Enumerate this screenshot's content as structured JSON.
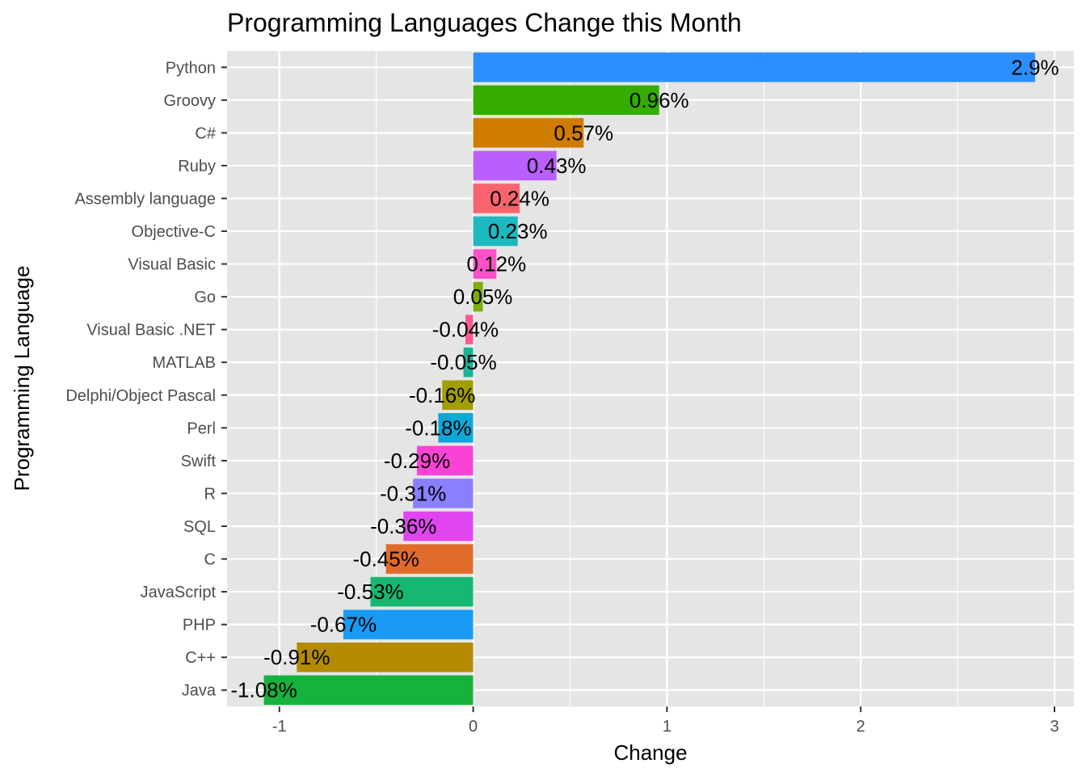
{
  "chart_data": {
    "type": "bar",
    "orientation": "horizontal",
    "title": "Programming Languages Change this Month",
    "xlabel": "Change",
    "ylabel": "Programming Language",
    "xlim": [
      -1.27,
      3.1
    ],
    "x_ticks": [
      "-1",
      "0",
      "1",
      "2",
      "3"
    ],
    "x_tick_values": [
      -1,
      0,
      1,
      2,
      3
    ],
    "grid": true,
    "legend": "none",
    "categories": [
      "Python",
      "Groovy",
      "C#",
      "Ruby",
      "Assembly language",
      "Objective-C",
      "Visual Basic",
      "Go",
      "Visual Basic .NET",
      "MATLAB",
      "Delphi/Object Pascal",
      "Perl",
      "Swift",
      "R",
      "SQL",
      "C",
      "JavaScript",
      "PHP",
      "C++",
      "Java"
    ],
    "values": [
      2.9,
      0.96,
      0.57,
      0.43,
      0.24,
      0.23,
      0.12,
      0.05,
      -0.04,
      -0.05,
      -0.16,
      -0.18,
      -0.29,
      -0.31,
      -0.36,
      -0.45,
      -0.53,
      -0.67,
      -0.91,
      -1.08
    ],
    "labels": [
      "2.9%",
      "0.96%",
      "0.57%",
      "0.43%",
      "0.24%",
      "0.23%",
      "0.12%",
      "0.05%",
      "-0.04%",
      "-0.05%",
      "-0.16%",
      "-0.18%",
      "-0.29%",
      "-0.31%",
      "-0.36%",
      "-0.45%",
      "-0.53%",
      "-0.67%",
      "-0.91%",
      "-1.08%"
    ],
    "colors": [
      "#2C8FFF",
      "#34AD00",
      "#CF7C00",
      "#BA5FFF",
      "#F8646D",
      "#1DB8C0",
      "#FD51C8",
      "#7EAC0C",
      "#FD5B8F",
      "#18B498",
      "#A19E00",
      "#0CA8D7",
      "#FA43D6",
      "#8A7FFF",
      "#E045F1",
      "#E06B2A",
      "#17B771",
      "#199AF4",
      "#B38A00",
      "#17B23E"
    ],
    "panel_color": "#E5E5E5",
    "grid_color": "#FFFFFF"
  }
}
